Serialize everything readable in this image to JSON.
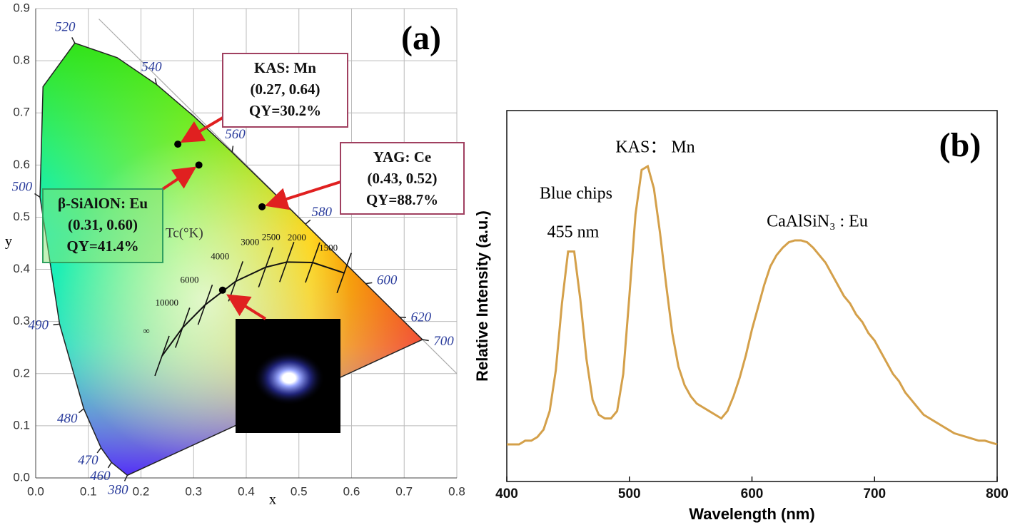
{
  "chart_data": [
    {
      "type": "chromaticity",
      "panel_label": "(a)",
      "x_label": "x",
      "y_label": "y",
      "xlim": [
        0,
        0.8
      ],
      "ylim": [
        0,
        0.9
      ],
      "xticks": [
        {
          "value": 0,
          "label": "0.0"
        },
        0.1,
        0.2,
        0.3,
        0.4,
        0.5,
        0.6,
        0.7,
        0.8
      ],
      "yticks": [
        {
          "value": 0,
          "label": "0.0"
        },
        0.1,
        0.2,
        0.3,
        0.4,
        0.5,
        0.6,
        0.7,
        0.8,
        0.9
      ],
      "grid": true,
      "locus": {
        "x": [
          0.1741,
          0.144,
          0.1241,
          0.0913,
          0.0454,
          0.0082,
          0.0139,
          0.0743,
          0.1547,
          0.2296,
          0.3016,
          0.3731,
          0.4441,
          0.5125,
          0.5752,
          0.627,
          0.6915,
          0.7347
        ],
        "y": [
          0.005,
          0.0297,
          0.0578,
          0.1327,
          0.295,
          0.5384,
          0.7502,
          0.8338,
          0.8059,
          0.7543,
          0.6923,
          0.6245,
          0.5547,
          0.4866,
          0.4242,
          0.3725,
          0.3083,
          0.2653
        ],
        "labels": [
          380,
          460,
          470,
          480,
          490,
          500,
          null,
          520,
          null,
          540,
          null,
          560,
          null,
          580,
          null,
          600,
          620,
          700
        ]
      },
      "planckian": {
        "title": "Tc(°K)",
        "x": [
          0.24,
          0.279,
          0.322,
          0.38,
          0.437,
          0.477,
          0.526,
          0.586
        ],
        "y": [
          0.234,
          0.288,
          0.332,
          0.377,
          0.404,
          0.414,
          0.413,
          0.393
        ],
        "labels": [
          "∞",
          10000,
          6000,
          4000,
          3000,
          2500,
          2000,
          1500
        ]
      },
      "points": {
        "color": "#000000",
        "x": [
          0.27,
          0.43,
          0.31,
          0.355
        ],
        "y": [
          0.64,
          0.52,
          0.6,
          0.36
        ]
      },
      "annotations": [
        [
          "KAS: Mn",
          "(0.27, 0.64)",
          "QY=30.2%"
        ],
        [
          "YAG: Ce",
          "(0.43, 0.52)",
          "QY=88.7%"
        ],
        [
          "β-SiAlON: Eu",
          "(0.31, 0.60)",
          "QY=41.4%"
        ]
      ]
    },
    {
      "type": "line",
      "panel_label": "(b)",
      "x_label": "Wavelength (nm)",
      "y_label": "Relative Intensity (a.u.)",
      "xlim": [
        400,
        800
      ],
      "ylim": [
        0,
        1
      ],
      "xticks": [
        400,
        500,
        600,
        700,
        800
      ],
      "color": "#d4a04a",
      "annotations": [
        "Blue chips",
        "455 nm",
        "KAS： Mn",
        "CaAlSiN₃ : Eu"
      ],
      "x": [
        400,
        405,
        410,
        415,
        420,
        425,
        430,
        435,
        440,
        445,
        450,
        455,
        460,
        465,
        470,
        475,
        480,
        485,
        490,
        495,
        500,
        505,
        510,
        515,
        520,
        525,
        530,
        535,
        540,
        545,
        550,
        555,
        560,
        565,
        570,
        575,
        580,
        585,
        590,
        595,
        600,
        605,
        610,
        615,
        620,
        625,
        630,
        635,
        640,
        645,
        650,
        655,
        660,
        665,
        670,
        675,
        680,
        685,
        690,
        695,
        700,
        705,
        710,
        715,
        720,
        725,
        730,
        735,
        740,
        745,
        750,
        755,
        760,
        765,
        770,
        775,
        780,
        785,
        790,
        795,
        800
      ],
      "values": [
        0.1,
        0.1,
        0.1,
        0.11,
        0.11,
        0.12,
        0.14,
        0.19,
        0.3,
        0.48,
        0.62,
        0.62,
        0.49,
        0.33,
        0.22,
        0.18,
        0.17,
        0.17,
        0.19,
        0.29,
        0.5,
        0.72,
        0.84,
        0.85,
        0.79,
        0.67,
        0.53,
        0.4,
        0.31,
        0.26,
        0.23,
        0.21,
        0.2,
        0.19,
        0.18,
        0.17,
        0.19,
        0.23,
        0.28,
        0.34,
        0.41,
        0.47,
        0.53,
        0.58,
        0.61,
        0.63,
        0.645,
        0.65,
        0.65,
        0.645,
        0.63,
        0.61,
        0.59,
        0.56,
        0.53,
        0.5,
        0.48,
        0.45,
        0.43,
        0.4,
        0.38,
        0.35,
        0.32,
        0.29,
        0.27,
        0.24,
        0.22,
        0.2,
        0.18,
        0.17,
        0.16,
        0.15,
        0.14,
        0.13,
        0.125,
        0.12,
        0.115,
        0.11,
        0.11,
        0.105,
        0.1
      ]
    }
  ]
}
